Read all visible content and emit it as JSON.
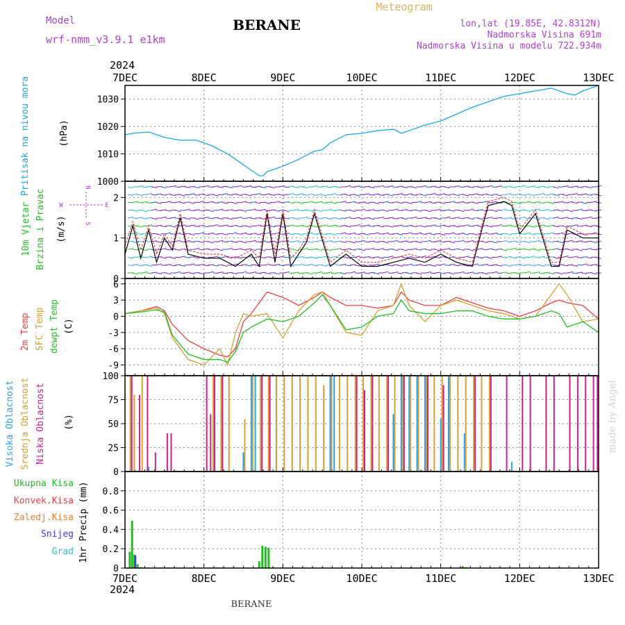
{
  "header": {
    "title": "BERANE",
    "footer": "BERANE",
    "meteogram": "Meteogram",
    "model_label": "Model",
    "model_name": "wrf-nmm_v3.9.1 e1km",
    "coords": "lon,lat (19.85E, 42.8312N)",
    "elevation": "Nadmorska Visina 691m",
    "model_elevation": "Nadmorska Visina u modelu 722.934m",
    "year_top": "2024",
    "year_bottom": "2024",
    "credit": "made by Angel"
  },
  "colors": {
    "pressure": "#1aa8e6",
    "temp2m": "#f04040",
    "sfc": "#d9a030",
    "dew": "#20c020",
    "high_cloud": "#2aa0e8",
    "mid_cloud": "#d9a030",
    "low_cloud": "#c8208c",
    "precip": "#20c020",
    "conv": "#f04040",
    "snow": "#4040e0",
    "grad": "#30c0c0",
    "wind": "#8020d0",
    "purple_text": "#b040d0",
    "orange_text": "#e0b060"
  },
  "time_axis": {
    "days": [
      "7DEC",
      "8DEC",
      "9DEC",
      "10DEC",
      "11DEC",
      "12DEC",
      "13DEC"
    ]
  },
  "wind_axis": {
    "directions": [
      "N",
      "W",
      "E",
      "S"
    ]
  },
  "chart_data": [
    {
      "type": "line",
      "title": "Pritisak na nivou mora",
      "ylabel": "(hPa)",
      "ylim": [
        1000,
        1035
      ],
      "yticks": [
        "1000",
        "1010",
        "1020",
        "1030"
      ],
      "x": [
        0,
        0.1,
        0.3,
        0.5,
        0.7,
        0.9,
        1.0,
        1.1,
        1.3,
        1.4,
        1.5,
        1.6,
        1.7,
        1.75,
        1.8,
        1.9,
        2.0,
        2.2,
        2.4,
        2.5,
        2.6,
        2.8,
        3.0,
        3.2,
        3.4,
        3.5,
        3.6,
        3.8,
        4.0,
        4.2,
        4.4,
        4.6,
        4.8,
        5.0,
        5.2,
        5.4,
        5.6,
        5.7,
        5.8,
        6.0
      ],
      "series": [
        {
          "values": [
            1017,
            1017.5,
            1018,
            1016,
            1015,
            1015,
            1014,
            1013,
            1010,
            1008,
            1006,
            1004,
            1002,
            1002,
            1003.5,
            1004.5,
            1005.5,
            1008,
            1011,
            1011.5,
            1014,
            1017,
            1017.5,
            1018.5,
            1019,
            1017.5,
            1018.5,
            1020.5,
            1022,
            1024.5,
            1027,
            1029,
            1031,
            1032,
            1033,
            1034,
            1032,
            1031.5,
            1033,
            1035
          ]
        }
      ]
    },
    {
      "type": "line",
      "title": "10m Vjetar Brzina i Pravac",
      "ylabel": "(m/s)",
      "ylim": [
        0,
        2.4
      ],
      "yticks": [
        "0",
        "1",
        "2"
      ],
      "x": [
        0,
        0.1,
        0.2,
        0.3,
        0.4,
        0.5,
        0.6,
        0.7,
        0.8,
        1.0,
        1.2,
        1.4,
        1.6,
        1.7,
        1.8,
        1.9,
        2.0,
        2.1,
        2.2,
        2.3,
        2.4,
        2.6,
        2.8,
        3.0,
        3.2,
        3.4,
        3.6,
        3.8,
        4.0,
        4.2,
        4.4,
        4.6,
        4.8,
        4.9,
        5.0,
        5.2,
        5.4,
        5.5,
        5.6,
        5.8,
        6.0
      ],
      "series": [
        {
          "name": "black",
          "values": [
            0.6,
            1.3,
            0.5,
            1.2,
            0.4,
            1.0,
            0.7,
            1.5,
            0.6,
            0.5,
            0.5,
            0.3,
            0.6,
            0.3,
            1.6,
            0.4,
            1.6,
            0.3,
            0.6,
            0.9,
            1.6,
            0.3,
            0.6,
            0.3,
            0.3,
            0.4,
            0.5,
            0.4,
            0.6,
            0.4,
            0.3,
            1.8,
            1.9,
            1.8,
            1.1,
            1.6,
            0.3,
            0.3,
            1.2,
            1.0,
            1.0
          ]
        },
        {
          "name": "red",
          "values": [
            0.8,
            1.4,
            0.7,
            1.3,
            0.6,
            1.1,
            0.8,
            1.6,
            0.7,
            0.6,
            0.6,
            0.5,
            0.7,
            0.5,
            1.7,
            0.6,
            1.7,
            0.5,
            0.7,
            1.0,
            1.7,
            0.4,
            0.7,
            0.4,
            0.4,
            0.5,
            0.6,
            0.5,
            0.7,
            0.5,
            0.4,
            1.9,
            2.0,
            1.9,
            1.2,
            1.7,
            0.4,
            0.4,
            1.3,
            1.1,
            1.1
          ]
        }
      ]
    },
    {
      "type": "line",
      "ylabel": "(C)",
      "ylim": [
        -11,
        7
      ],
      "yticks": [
        "-9",
        "-6",
        "-3",
        "0",
        "3",
        "6"
      ],
      "x": [
        0,
        0.2,
        0.4,
        0.5,
        0.6,
        0.8,
        1.0,
        1.2,
        1.3,
        1.4,
        1.5,
        1.6,
        1.8,
        2.0,
        2.2,
        2.4,
        2.5,
        2.6,
        2.8,
        3.0,
        3.2,
        3.4,
        3.5,
        3.6,
        3.8,
        4.0,
        4.2,
        4.4,
        4.6,
        4.8,
        5.0,
        5.2,
        5.4,
        5.5,
        5.6,
        5.8,
        6.0
      ],
      "series": [
        {
          "name": "2m Temp",
          "values": [
            0.5,
            1.0,
            1.8,
            1.0,
            -1.5,
            -4.5,
            -6.0,
            -7.2,
            -7.5,
            -6.0,
            -1.0,
            0.5,
            4.5,
            3.5,
            2.0,
            3.5,
            4.5,
            3.5,
            2.0,
            2.0,
            1.5,
            2.0,
            4.5,
            3.0,
            2.0,
            2.0,
            3.5,
            2.5,
            1.5,
            1.0,
            0.0,
            1.0,
            2.5,
            3.0,
            2.5,
            2.0,
            -0.5
          ]
        },
        {
          "name": "SFC Temp",
          "values": [
            0.5,
            1.0,
            1.5,
            0.5,
            -4.0,
            -8.0,
            -9.0,
            -6.0,
            -9.0,
            -3.0,
            0.5,
            0.0,
            0.5,
            -4.0,
            1.0,
            4.0,
            4.5,
            2.0,
            -3.0,
            -3.5,
            1.0,
            2.0,
            6.0,
            2.0,
            -1.0,
            2.0,
            3.0,
            2.0,
            1.0,
            0.5,
            -0.5,
            0.0,
            4.0,
            6.0,
            4.0,
            -1.0,
            -0.5
          ]
        },
        {
          "name": "dewpt Temp",
          "values": [
            0.5,
            0.8,
            1.2,
            0.8,
            -3.5,
            -7.0,
            -8.0,
            -8.0,
            -8.5,
            -6.5,
            -3.0,
            -2.0,
            -0.5,
            -1.0,
            0.0,
            2.5,
            4.0,
            2.0,
            -2.5,
            -2.0,
            0.0,
            0.5,
            3.0,
            1.0,
            0.5,
            0.5,
            1.0,
            1.0,
            0.0,
            -0.5,
            -0.5,
            0.0,
            1.0,
            0.5,
            -2.0,
            -1.0,
            -3.0
          ]
        }
      ]
    },
    {
      "type": "bar",
      "ylabel": "(%)",
      "ylim": [
        0,
        100
      ],
      "yticks": [
        "0",
        "25",
        "50",
        "75",
        "100"
      ],
      "series": [
        {
          "name": "Visoka Oblacnost",
          "x": [
            0.3,
            1.5,
            1.6,
            1.65,
            2.6,
            2.65,
            3.4,
            3.5,
            3.6,
            3.7,
            3.8,
            4.0,
            4.1,
            4.3,
            4.9
          ],
          "values": [
            5,
            20,
            100,
            100,
            100,
            100,
            60,
            100,
            100,
            100,
            100,
            55,
            100,
            40,
            10
          ]
        },
        {
          "name": "Srednja Oblacnost",
          "x": [
            0.05,
            0.1,
            0.2,
            1.1,
            1.2,
            1.3,
            1.5,
            1.6,
            1.7,
            1.8,
            1.9,
            2.0,
            2.1,
            2.2,
            2.3,
            2.4,
            2.5,
            2.6,
            2.7,
            2.8,
            2.9,
            3.0,
            3.1,
            3.2,
            3.3,
            3.4,
            3.5,
            3.6,
            3.7,
            3.8,
            3.9,
            4.0,
            4.1,
            4.2,
            4.3,
            4.4,
            4.5,
            4.6
          ],
          "values": [
            100,
            80,
            100,
            100,
            100,
            100,
            55,
            100,
            100,
            100,
            100,
            100,
            100,
            100,
            100,
            100,
            90,
            100,
            100,
            100,
            100,
            100,
            100,
            100,
            100,
            100,
            100,
            100,
            100,
            100,
            100,
            100,
            100,
            100,
            100,
            100,
            100,
            100
          ]
        },
        {
          "name": "Niska Oblacnost",
          "x": [
            0.05,
            0.15,
            0.25,
            0.35,
            0.5,
            0.55,
            1.0,
            1.05,
            1.1,
            1.2,
            1.7,
            1.8,
            2.9,
            3.0,
            3.1,
            3.3,
            3.5,
            3.8,
            4.0,
            4.4,
            4.6,
            4.8,
            5.0,
            5.1,
            5.3,
            5.4,
            5.6,
            5.7,
            5.8,
            5.9,
            5.95
          ],
          "values": [
            100,
            80,
            100,
            20,
            40,
            40,
            100,
            60,
            100,
            100,
            100,
            100,
            100,
            85,
            100,
            100,
            100,
            100,
            90,
            100,
            100,
            100,
            100,
            100,
            100,
            100,
            100,
            100,
            100,
            100,
            100
          ]
        }
      ]
    },
    {
      "type": "bar",
      "ylabel": "1hr Precip (mm)",
      "ylim": [
        0,
        1.0
      ],
      "yticks": [
        "0",
        "0.2",
        "0.4",
        "0.6",
        "0.8"
      ],
      "series": [
        {
          "name": "Ukupna Kisa",
          "x": [
            0.06,
            0.09,
            0.12,
            0.16,
            0.2,
            1.7,
            1.74,
            1.78,
            1.82,
            4.28,
            4.32
          ],
          "values": [
            0.17,
            0.49,
            0.14,
            0.04,
            0.01,
            0.07,
            0.23,
            0.22,
            0.21,
            0.02,
            0.01
          ]
        },
        {
          "name": "Konvek.Kisa",
          "x": [
            0.12
          ],
          "values": [
            0.02
          ]
        },
        {
          "name": "Zaledj.Kisa",
          "x": [],
          "values": []
        },
        {
          "name": "Snijeg",
          "x": [
            0.13
          ],
          "values": [
            0.13
          ]
        },
        {
          "name": "Grad",
          "x": [],
          "values": []
        }
      ]
    }
  ],
  "panel_labels": {
    "pressure": "Pritisak na nivou mora",
    "wind1": "10m Vjetar",
    "wind2": "Brzina i Pravac",
    "temp1": "2m Temp",
    "temp2": "SFC Temp",
    "temp3": "dewpt Temp",
    "cloud1": "Visoka Oblacnost",
    "cloud2": "Srednja Oblacnost",
    "cloud3": "Niska Oblacnost",
    "precip_legend": [
      "Ukupna Kisa",
      "Konvek.Kisa",
      "Zaledj.Kisa",
      "Snijeg",
      "Grad"
    ]
  }
}
